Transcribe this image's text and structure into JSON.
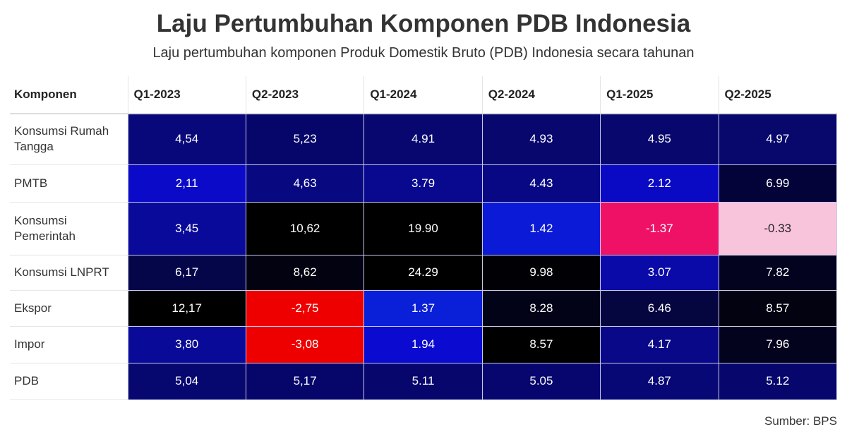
{
  "chart_data": {
    "type": "heatmap",
    "title": "Laju Pertumbuhan Komponen PDB Indonesia",
    "subtitle": "Laju pertumbuhan komponen Produk Domestik Bruto (PDB) Indonesia secara tahunan",
    "row_header": "Komponen",
    "columns": [
      "Q1-2023",
      "Q2-2023",
      "Q1-2024",
      "Q2-2024",
      "Q1-2025",
      "Q2-2025"
    ],
    "rows": [
      {
        "label": "Konsumsi Rumah Tangga",
        "values": [
          "4,54",
          "5,23",
          "4.91",
          "4.93",
          "4.95",
          "4.97"
        ],
        "colors": [
          "#08087a",
          "#06066a",
          "#07076f",
          "#07076e",
          "#07076d",
          "#07076c"
        ]
      },
      {
        "label": "PMTB",
        "values": [
          "2,11",
          "4,63",
          "3.79",
          "4.43",
          "2.12",
          "6.99"
        ],
        "colors": [
          "#0a0ac8",
          "#080880",
          "#090990",
          "#080885",
          "#0a0ac5",
          "#03033a"
        ]
      },
      {
        "label": "Konsumsi Pemerintah",
        "values": [
          "3,45",
          "10,62",
          "19.90",
          "1.42",
          "-1.37",
          "-0.33"
        ],
        "colors": [
          "#09099a",
          "#000000",
          "#000000",
          "#0b1ad6",
          "#ee1166",
          "#f8c4dc"
        ]
      },
      {
        "label": "Konsumsi LNPRT",
        "values": [
          "6,17",
          "8,62",
          "24.29",
          "9.98",
          "3.07",
          "7.82"
        ],
        "colors": [
          "#05054a",
          "#020210",
          "#000000",
          "#010105",
          "#0a0aa8",
          "#030320"
        ]
      },
      {
        "label": "Ekspor",
        "values": [
          "12,17",
          "-2,75",
          "1.37",
          "8.28",
          "6.46",
          "8.57"
        ],
        "colors": [
          "#000000",
          "#ee0000",
          "#0a20d8",
          "#030318",
          "#050540",
          "#020210"
        ]
      },
      {
        "label": "Impor",
        "values": [
          "3,80",
          "-3,08",
          "1.94",
          "8.57",
          "4.17",
          "7.96"
        ],
        "colors": [
          "#0a0a98",
          "#ee0000",
          "#0a0ad0",
          "#000000",
          "#080888",
          "#03031d"
        ]
      },
      {
        "label": "PDB",
        "values": [
          "5,04",
          "5,17",
          "5.11",
          "5.05",
          "4.87",
          "5.12"
        ],
        "colors": [
          "#070770",
          "#06066a",
          "#06066c",
          "#06066e",
          "#070775",
          "#06066c"
        ]
      }
    ],
    "source": "Sumber: BPS"
  }
}
